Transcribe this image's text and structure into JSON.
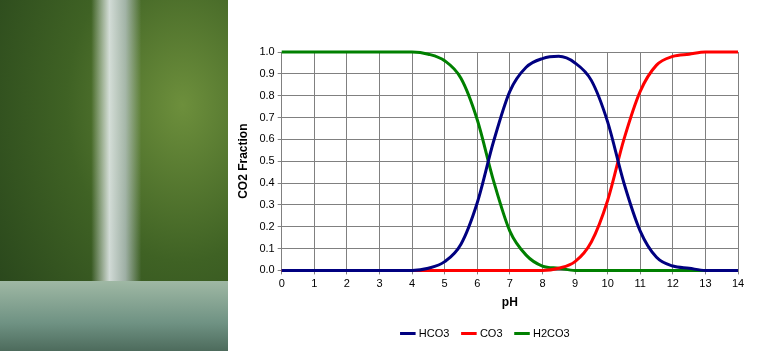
{
  "chart_data": {
    "type": "line",
    "x_label": "pH",
    "y_label": "CO2 Fraction",
    "x": [
      0,
      0.5,
      1,
      1.5,
      2,
      2.5,
      3,
      3.5,
      4,
      4.5,
      5,
      5.5,
      6,
      6.5,
      7,
      7.5,
      8,
      8.5,
      9,
      9.5,
      10,
      10.5,
      11,
      11.5,
      12,
      12.5,
      13,
      13.5,
      14
    ],
    "series": [
      {
        "name": "HCO3",
        "color": "#000080",
        "values": [
          0,
          0,
          0,
          0,
          0,
          0,
          0,
          0,
          0,
          0.01,
          0.04,
          0.12,
          0.31,
          0.59,
          0.82,
          0.93,
          0.97,
          0.98,
          0.95,
          0.87,
          0.68,
          0.4,
          0.18,
          0.06,
          0.02,
          0.01,
          0,
          0,
          0
        ]
      },
      {
        "name": "CO3",
        "color": "#ff0000",
        "values": [
          0,
          0,
          0,
          0,
          0,
          0,
          0,
          0,
          0,
          0,
          0,
          0,
          0,
          0,
          0,
          0,
          0,
          0.01,
          0.04,
          0.13,
          0.32,
          0.6,
          0.82,
          0.94,
          0.98,
          0.99,
          1,
          1,
          1
        ]
      },
      {
        "name": "H2CO3",
        "color": "#008000",
        "values": [
          1,
          1,
          1,
          1,
          1,
          1,
          1,
          1,
          1,
          0.99,
          0.96,
          0.88,
          0.69,
          0.41,
          0.18,
          0.07,
          0.02,
          0.01,
          0,
          0,
          0,
          0,
          0,
          0,
          0,
          0,
          0,
          0,
          0
        ]
      }
    ],
    "xlim": [
      0,
      14
    ],
    "xticks": [
      0,
      1,
      2,
      3,
      4,
      5,
      6,
      7,
      8,
      9,
      10,
      11,
      12,
      13,
      14
    ],
    "ylim": [
      0,
      1
    ],
    "yticks": [
      {
        "value": 0,
        "label": "0.0"
      },
      0.1,
      0.2,
      0.3,
      0.4,
      0.5,
      0.6,
      0.7,
      0.8,
      0.9,
      {
        "value": 1,
        "label": "1.0"
      }
    ],
    "grid": true,
    "legend": "bottom"
  }
}
